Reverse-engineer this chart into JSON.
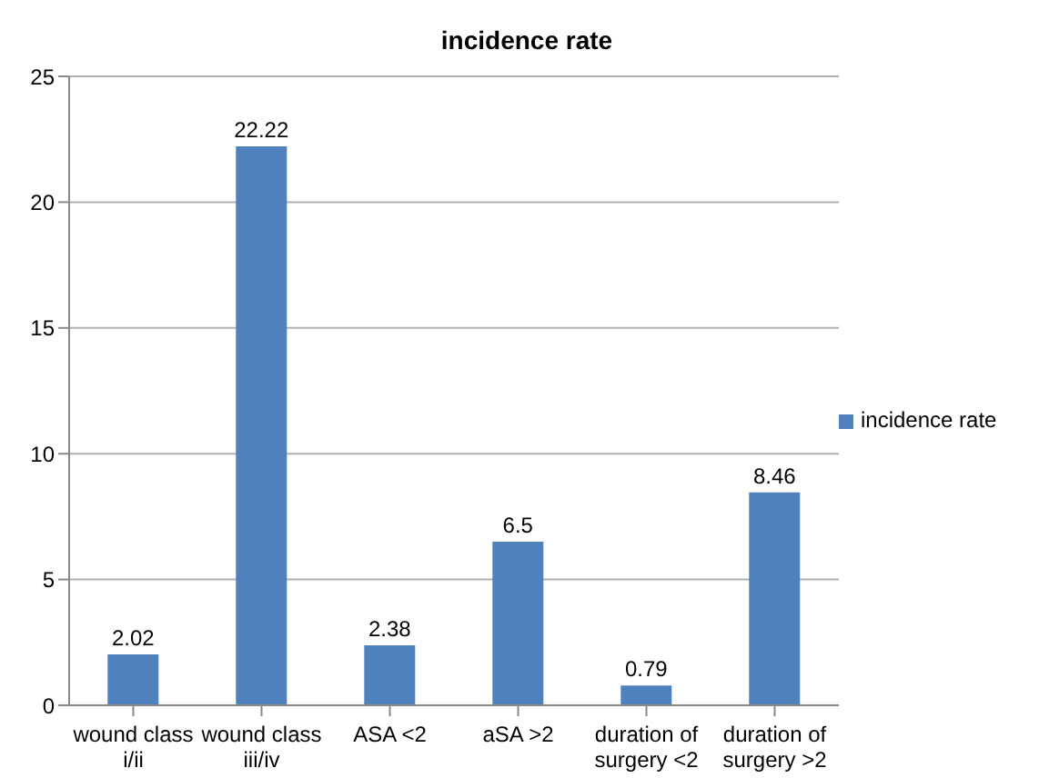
{
  "chart_data": {
    "type": "bar",
    "title": "incidence rate",
    "categories": [
      "wound class i/ii",
      "wound class iii/iv",
      "ASA <2",
      "aSA >2",
      "duration of surgery <2",
      "duration of surgery >2"
    ],
    "series": [
      {
        "name": "incidence rate",
        "color": "#4f81bd",
        "values": [
          2.02,
          22.22,
          2.38,
          6.5,
          0.79,
          8.46
        ]
      }
    ],
    "ylim": [
      0,
      25
    ],
    "yticks": [
      0,
      5,
      10,
      15,
      20,
      25
    ],
    "grid": "y",
    "legend": "right",
    "data_labels": true
  }
}
